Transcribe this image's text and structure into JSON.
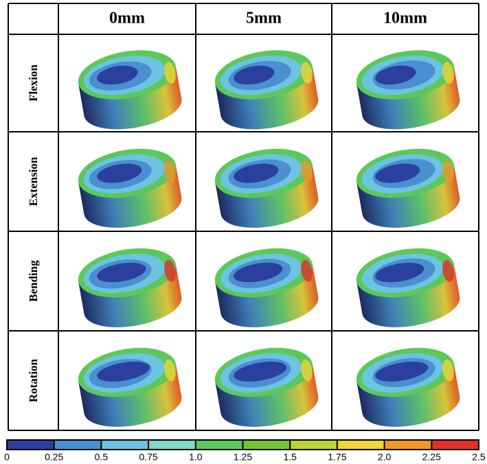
{
  "table": {
    "columns": [
      "0mm",
      "5mm",
      "10mm"
    ],
    "rows": [
      "Flexion",
      "Extension",
      "Bending",
      "Rotation"
    ]
  },
  "colorbar": {
    "labels": [
      "0",
      "0.25",
      "0.5",
      "0.75",
      "1.0",
      "1.25",
      "1.5",
      "1.75",
      "2.0",
      "2.25",
      "2.5"
    ],
    "colors": [
      "#2b3f9e",
      "#4a8fd0",
      "#6cc4e0",
      "#7fd8c8",
      "#5cc85a",
      "#78c23a",
      "#b9d33a",
      "#f0d43a",
      "#f0952a",
      "#e0302a"
    ]
  }
}
